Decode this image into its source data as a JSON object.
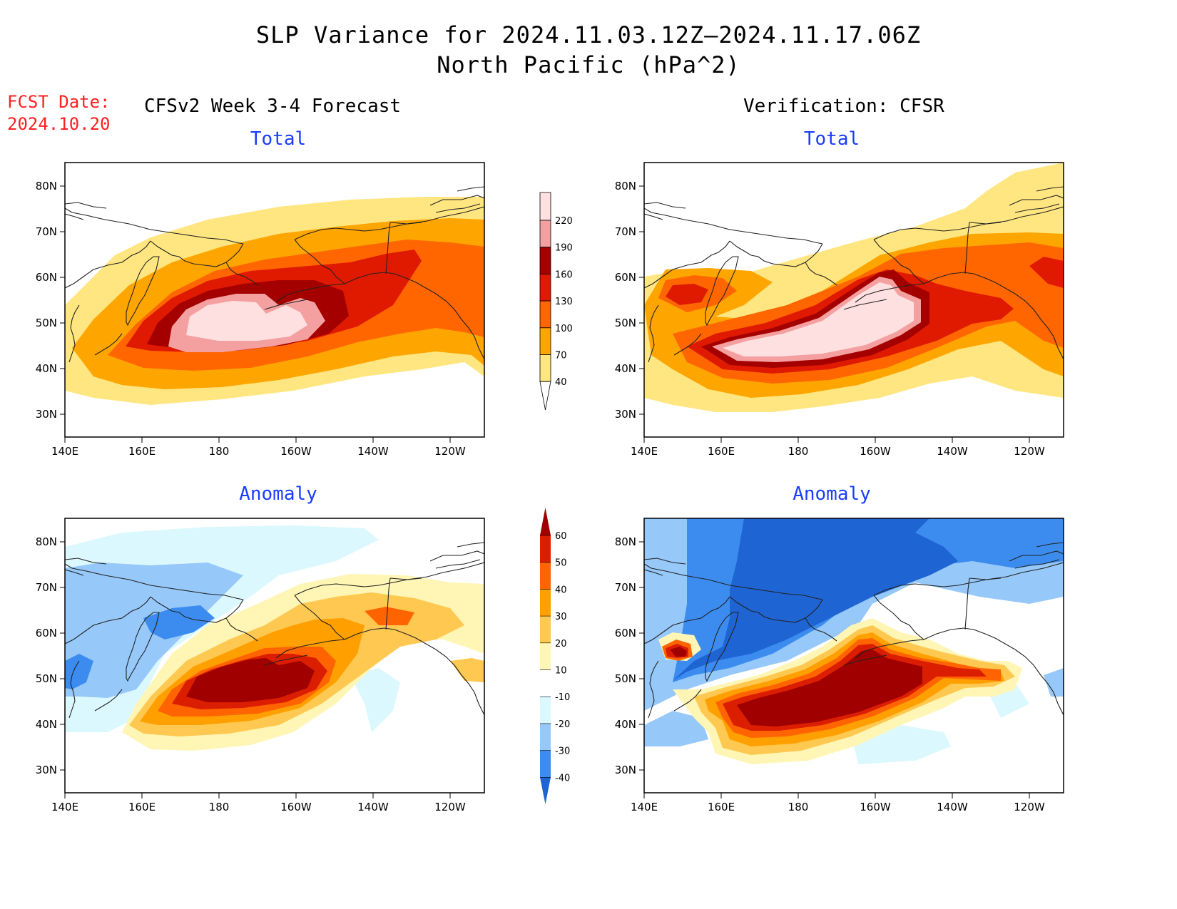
{
  "header": {
    "title_line1": "SLP Variance for 2024.11.03.12Z—2024.11.17.06Z",
    "title_line2": "North Pacific (hPa^2)",
    "fcst_label": "FCST Date:",
    "fcst_date": "2024.10.20",
    "left_column_title": "CFSv2 Week 3-4 Forecast",
    "right_column_title": "Verification: CFSR"
  },
  "panels": [
    {
      "title": "Total"
    },
    {
      "title": "Total"
    },
    {
      "title": "Anomaly"
    },
    {
      "title": "Anomaly"
    }
  ],
  "axes": {
    "lon_labels": [
      "140E",
      "160E",
      "180",
      "160W",
      "140W",
      "120W"
    ],
    "lat_labels": [
      "80N",
      "70N",
      "60N",
      "50N",
      "40N",
      "30N"
    ],
    "lon_range": [
      140,
      249
    ],
    "lat_range": [
      25,
      85
    ]
  },
  "colorbars": {
    "total": {
      "levels": [
        "40",
        "70",
        "100",
        "130",
        "160",
        "190",
        "220"
      ],
      "colors": [
        "#ffe680",
        "#ffa500",
        "#ff6600",
        "#e01a00",
        "#a50000",
        "#f5a0a0",
        "#ffe0e0"
      ]
    },
    "anomaly": {
      "levels": [
        "-40",
        "-30",
        "-20",
        "-10",
        "10",
        "20",
        "30",
        "40",
        "50",
        "60"
      ],
      "colors": [
        "#1e64d2",
        "#3c8cf0",
        "#96c8fa",
        "#dcf8ff",
        "#ffffff",
        "#fff5b4",
        "#ffc850",
        "#ffa000",
        "#ff6400",
        "#dc1e00",
        "#a00000"
      ]
    }
  },
  "chart_data": {
    "type": "heatmap",
    "variable": "SLP Variance",
    "units": "hPa^2",
    "region": "North Pacific",
    "valid_period": "2024.11.03.12Z-2024.11.17.06Z",
    "forecast_date": "2024.10.20",
    "panels": [
      {
        "name": "CFSv2 Week 3-4 Forecast Total",
        "approx_max": ">220",
        "max_center": [
          52,
          185
        ]
      },
      {
        "name": "Verification: CFSR Total",
        "approx_max": ">220",
        "max_center": [
          50,
          195
        ]
      },
      {
        "name": "CFSv2 Week 3-4 Forecast Anomaly",
        "approx_max": ">60",
        "approx_min": "-40"
      },
      {
        "name": "Verification: CFSR Anomaly",
        "approx_max": ">60",
        "approx_min": "<-40"
      }
    ]
  }
}
